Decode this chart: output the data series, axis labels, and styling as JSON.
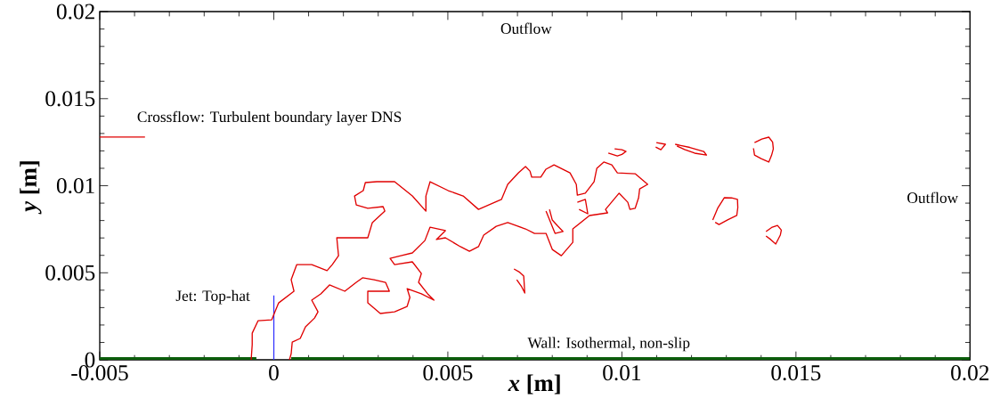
{
  "chart_data": {
    "type": "line",
    "xlabel": "*x* [m]",
    "ylabel": "*y* [m]",
    "xlim": [
      -0.005,
      0.02
    ],
    "ylim": [
      0,
      0.02
    ],
    "xticks": [
      -0.005,
      0,
      0.005,
      0.01,
      0.015,
      0.02
    ],
    "yticks": [
      0,
      0.005,
      0.01,
      0.015,
      0.02
    ],
    "annotations": [
      "Outflow",
      "Outflow",
      "Crossflow: Turbulent boundary layer DNS",
      "Jet: Top-hat",
      "Wall: Isothermal, non-slip"
    ],
    "series": [
      {
        "type": "area",
        "color": "#0b5e0b",
        "x": [
          -0.005,
          -0.0005,
          0,
          0.0005,
          0.02
        ],
        "values": [
          0.00015,
          0.00015,
          null,
          0.00015,
          0.00015
        ]
      },
      {
        "color": "#e00000",
        "x": [
          -0.005,
          -0.0037
        ],
        "values": [
          0.0128,
          0.0128
        ]
      },
      {
        "color": "#3030ff",
        "x": [
          0,
          0
        ],
        "values": [
          0,
          0.0037
        ]
      },
      {
        "color": "#e00000",
        "x": [
          -0.00065,
          -0.00062,
          -0.00062,
          -0.00045,
          -6e-05,
          0.00014,
          0.00058,
          0.0005,
          0.00066,
          0.00109,
          0.00153,
          0.00168,
          0.00186,
          0.00181,
          0.00229,
          0.0027,
          0.00283,
          0.00319,
          0.00314,
          0.0027,
          0.00237,
          0.00232,
          0.00257,
          0.00263,
          0.00296,
          0.00347,
          0.00398,
          0.00437,
          0.00437,
          0.00449,
          0.00501,
          0.00544,
          0.00588,
          0.00654,
          0.00672,
          0.00703,
          0.00723,
          0.00736,
          0.00741,
          0.00767,
          0.00782,
          0.00805,
          0.00851,
          0.00869,
          0.00872,
          0.00895,
          0.0092,
          0.00928,
          0.00948,
          0.00971,
          0.00987,
          0.01038,
          0.01074,
          0.01051,
          0.01048,
          0.01038,
          0.01023,
          0.01017,
          0.00992,
          0.00953,
          0.00959,
          0.00907,
          0.00859,
          0.00859,
          0.00826,
          0.008,
          0.00782,
          0.00749,
          0.00723,
          0.00672,
          0.00639,
          0.00603,
          0.00588,
          0.00562,
          0.00536,
          0.00493,
          0.00467,
          0.00493,
          0.00449,
          0.00434,
          0.00398,
          0.00365,
          0.00334,
          0.00347,
          0.00398,
          0.00424,
          0.00416,
          0.00442,
          0.0046,
          0.00424,
          0.00383,
          0.00391,
          0.00383,
          0.00347,
          0.00306,
          0.0027,
          0.0027,
          0.00332,
          0.00321,
          0.00288,
          0.00255,
          0.00237,
          0.00204,
          0.0016,
          0.00135,
          0.00109,
          0.00127,
          0.00117,
          0.00091,
          0.00076,
          0.00053,
          0.0005,
          0.00045
        ],
        "values": [
          0,
          0.00087,
          0.00153,
          0.00225,
          0.0023,
          0.00327,
          0.00394,
          0.0046,
          0.00547,
          0.00547,
          0.00512,
          0.00547,
          0.00598,
          0.00701,
          0.00701,
          0.00701,
          0.00788,
          0.00854,
          0.0088,
          0.0087,
          0.0089,
          0.00941,
          0.00972,
          0.01018,
          0.01023,
          0.01023,
          0.00941,
          0.00854,
          0.00941,
          0.01023,
          0.00972,
          0.00941,
          0.00864,
          0.00921,
          0.01008,
          0.01074,
          0.0111,
          0.01084,
          0.01049,
          0.01049,
          0.01095,
          0.0112,
          0.01074,
          0.01008,
          0.00946,
          0.00957,
          0.01023,
          0.011,
          0.01136,
          0.0112,
          0.01074,
          0.01069,
          0.01008,
          0.00982,
          0.00931,
          0.0087,
          0.00864,
          0.00905,
          0.00957,
          0.00864,
          0.00844,
          0.00829,
          0.00752,
          0.00675,
          0.00598,
          0.00634,
          0.00726,
          0.00726,
          0.00752,
          0.00788,
          0.00767,
          0.00716,
          0.0065,
          0.00624,
          0.0065,
          0.00701,
          0.00691,
          0.00742,
          0.00762,
          0.00685,
          0.00614,
          0.00598,
          0.00583,
          0.00547,
          0.00563,
          0.00496,
          0.00445,
          0.00379,
          0.00343,
          0.00379,
          0.00409,
          0.00358,
          0.00307,
          0.00276,
          0.00266,
          0.00327,
          0.00394,
          0.00394,
          0.00445,
          0.0046,
          0.00471,
          0.00445,
          0.00394,
          0.0043,
          0.00379,
          0.00343,
          0.00276,
          0.0024,
          0.00189,
          0.00123,
          0.00102,
          0.00036,
          0
        ]
      },
      {
        "color": "#e00000",
        "x": [
          0.01381,
          0.01402,
          0.01422,
          0.01433,
          0.01435,
          0.0143,
          0.01422,
          0.014,
          0.01381,
          0.01378
        ],
        "values": [
          0.01248,
          0.01268,
          0.01279,
          0.0125,
          0.01212,
          0.01175,
          0.01136,
          0.01156,
          0.01176,
          0.01215
        ]
      },
      {
        "color": "#e00000",
        "x": [
          0.01414,
          0.0143,
          0.01447,
          0.01458,
          0.01455,
          0.01442,
          0.01428,
          0.01414
        ],
        "values": [
          0.00737,
          0.0076,
          0.00772,
          0.00745,
          0.00716,
          0.00665,
          0.0069,
          0.00711
        ]
      },
      {
        "color": "#e00000",
        "x": [
          0.01261,
          0.01275,
          0.01294,
          0.01315,
          0.01332,
          0.01333,
          0.0133,
          0.01305,
          0.01279,
          0.01268
        ],
        "values": [
          0.00803,
          0.0087,
          0.00931,
          0.0093,
          0.00921,
          0.00875,
          0.00829,
          0.00805,
          0.00777,
          0.0079
        ]
      },
      {
        "color": "#e00000",
        "x": [
          0.01153,
          0.01195,
          0.01235,
          0.01243,
          0.01209,
          0.0118,
          0.01158
        ],
        "values": [
          0.01238,
          0.0122,
          0.01197,
          0.01176,
          0.01187,
          0.01208,
          0.01228
        ]
      },
      {
        "color": "#e00000",
        "x": [
          0.00979,
          0.01,
          0.01012,
          0.01,
          0.00987,
          0.00961
        ],
        "values": [
          0.01212,
          0.01207,
          0.01197,
          0.0118,
          0.01171,
          0.01187
        ]
      },
      {
        "color": "#e00000",
        "x": [
          0.01099,
          0.01125,
          0.01112,
          0.01097
        ],
        "values": [
          0.01248,
          0.01238,
          0.01207,
          0.01222
        ]
      },
      {
        "color": "#e00000",
        "x": [
          0.0069,
          0.00705,
          0.00718,
          0.00721,
          0.00712,
          0.00698
        ],
        "values": [
          0.00522,
          0.00505,
          0.00481,
          0.00384,
          0.0042,
          0.0046
        ]
      },
      {
        "color": "#e00000",
        "x": [
          0.00782,
          0.00795,
          0.00808,
          0.00831,
          0.00815,
          0.008,
          0.00792
        ],
        "values": [
          0.00854,
          0.0079,
          0.00726,
          0.00737,
          0.0077,
          0.00803,
          0.00864
        ]
      },
      {
        "color": "#e00000",
        "x": [
          0.00872,
          0.00895,
          0.00902,
          0.00877
        ],
        "values": [
          0.00905,
          0.00921,
          0.00839,
          0.00864
        ]
      }
    ]
  }
}
